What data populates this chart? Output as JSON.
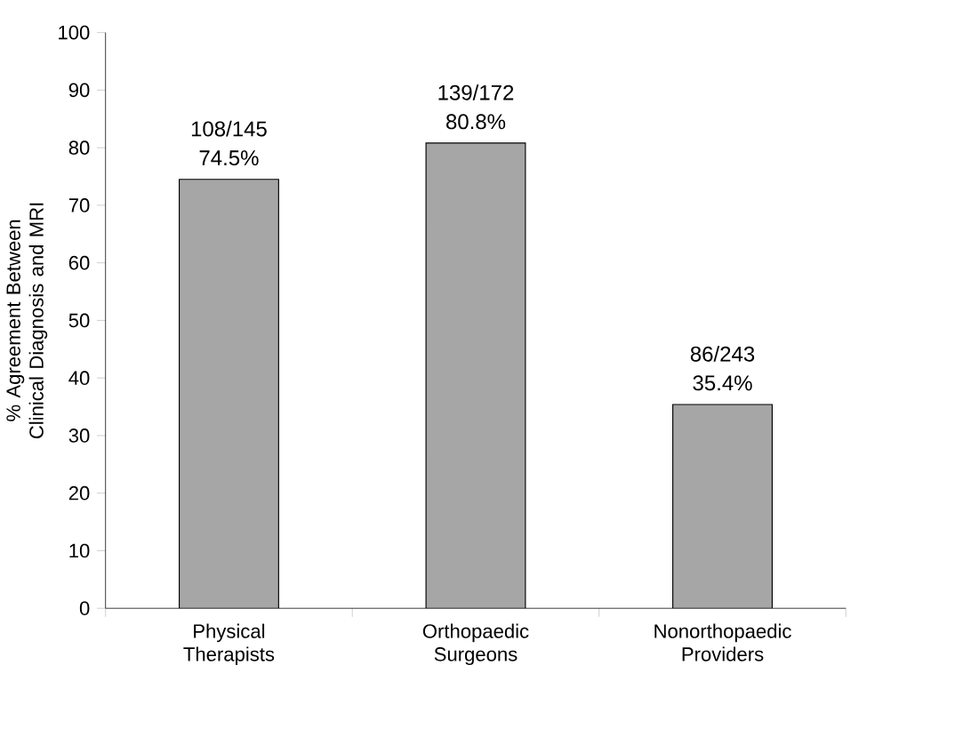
{
  "chart_data": {
    "type": "bar",
    "ylabel": "% Agreement Between Clinical Diagnosis and MRI",
    "categories": [
      "Physical Therapists",
      "Orthopaedic Surgeons",
      "Nonorthopaedic Providers"
    ],
    "values": [
      74.5,
      80.8,
      35.4
    ],
    "value_labels": [
      "108/145 74.5%",
      "139/172 80.8%",
      "86/243 35.4%"
    ],
    "color": "#a6a6a6",
    "ylim": [
      0,
      100
    ],
    "yticks": [
      0,
      10,
      20,
      30,
      40,
      50,
      60,
      70,
      80,
      90,
      100
    ]
  }
}
